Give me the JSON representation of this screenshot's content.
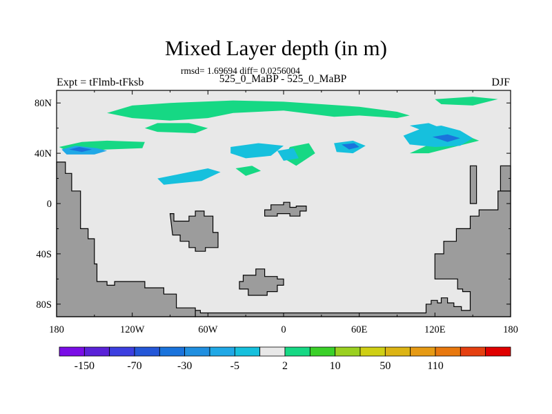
{
  "chart_data": {
    "type": "heatmap",
    "title": "Mixed Layer depth (in m)",
    "stats_line": "rmsd= 1.69694 diff= 0.0256004",
    "subtitle": "525_0_MaBP - 525_0_MaBP",
    "left_label": "Expt = tFlmb-tFksb",
    "right_label": "DJF",
    "xlim": [
      -180,
      180
    ],
    "ylim": [
      -90,
      90
    ],
    "x_ticks": [
      {
        "value": -180,
        "label": "180"
      },
      {
        "value": -120,
        "label": "120W"
      },
      {
        "value": -60,
        "label": "60W"
      },
      {
        "value": 0,
        "label": "0"
      },
      {
        "value": 60,
        "label": "60E"
      },
      {
        "value": 120,
        "label": "120E"
      },
      {
        "value": 180,
        "label": "180"
      }
    ],
    "y_ticks": [
      {
        "value": 80,
        "label": "80N"
      },
      {
        "value": 40,
        "label": "40N"
      },
      {
        "value": 0,
        "label": "0"
      },
      {
        "value": -40,
        "label": "40S"
      },
      {
        "value": -80,
        "label": "80S"
      }
    ],
    "colorbar": {
      "colors": [
        "#7a0de6",
        "#5a22d8",
        "#3c3fe0",
        "#2457d8",
        "#1a73dc",
        "#208fe0",
        "#20a8e6",
        "#16c0dd",
        "#e8e8e8",
        "#16d884",
        "#3ad028",
        "#9ad020",
        "#cfcf14",
        "#dcb414",
        "#e69a14",
        "#e8780e",
        "#e54010",
        "#e00000"
      ],
      "labels": [
        {
          "boundary": 1,
          "text": "-150"
        },
        {
          "boundary": 3,
          "text": "-70"
        },
        {
          "boundary": 5,
          "text": "-30"
        },
        {
          "boundary": 7,
          "text": "-5"
        },
        {
          "boundary": 9,
          "text": "2"
        },
        {
          "boundary": 11,
          "text": "10"
        },
        {
          "boundary": 13,
          "text": "50"
        },
        {
          "boundary": 15,
          "text": "110"
        }
      ]
    },
    "background_color": "#e8e8e8",
    "land_color": "#9c9c9c",
    "land_regions": [
      {
        "name": "west-land",
        "points": [
          [
            -180,
            33
          ],
          [
            -173,
            33
          ],
          [
            -173,
            24
          ],
          [
            -168,
            24
          ],
          [
            -168,
            10
          ],
          [
            -161,
            10
          ],
          [
            -161,
            -20
          ],
          [
            -155,
            -20
          ],
          [
            -155,
            -28
          ],
          [
            -150,
            -28
          ],
          [
            -150,
            -48
          ],
          [
            -148,
            -48
          ],
          [
            -148,
            -62
          ],
          [
            -140,
            -62
          ],
          [
            -140,
            -65
          ],
          [
            -134,
            -65
          ],
          [
            -134,
            -62
          ],
          [
            -110,
            -62
          ],
          [
            -110,
            -67
          ],
          [
            -95,
            -67
          ],
          [
            -95,
            -72
          ],
          [
            -85,
            -72
          ],
          [
            -85,
            -83
          ],
          [
            -70,
            -83
          ],
          [
            -70,
            -90
          ],
          [
            -180,
            -90
          ]
        ]
      },
      {
        "name": "south-land",
        "points": [
          [
            -70,
            -90
          ],
          [
            -70,
            -85
          ],
          [
            -66,
            -85
          ],
          [
            -66,
            -87
          ],
          [
            113,
            -87
          ],
          [
            113,
            -80
          ],
          [
            117,
            -80
          ],
          [
            117,
            -77
          ],
          [
            122,
            -77
          ],
          [
            122,
            -79
          ],
          [
            125,
            -79
          ],
          [
            125,
            -75
          ],
          [
            130,
            -75
          ],
          [
            130,
            -79
          ],
          [
            135,
            -79
          ],
          [
            135,
            -82
          ],
          [
            141,
            -82
          ],
          [
            141,
            -85
          ],
          [
            148,
            -85
          ],
          [
            148,
            -70
          ],
          [
            142,
            -70
          ],
          [
            142,
            -68
          ],
          [
            138,
            -68
          ],
          [
            138,
            -60
          ],
          [
            120,
            -60
          ],
          [
            120,
            -40
          ],
          [
            127,
            -40
          ],
          [
            127,
            -30
          ],
          [
            137,
            -30
          ],
          [
            137,
            -20
          ],
          [
            148,
            -20
          ],
          [
            148,
            -10
          ],
          [
            155,
            -10
          ],
          [
            155,
            -5
          ],
          [
            170,
            -5
          ],
          [
            170,
            10
          ],
          [
            180,
            10
          ],
          [
            180,
            -90
          ]
        ]
      },
      {
        "name": "east-peninsula",
        "points": [
          [
            180,
            30
          ],
          [
            172,
            30
          ],
          [
            172,
            10
          ],
          [
            180,
            10
          ]
        ]
      },
      {
        "name": "east-land-strip",
        "points": [
          [
            148,
            30
          ],
          [
            153,
            30
          ],
          [
            153,
            0
          ],
          [
            148,
            0
          ]
        ]
      },
      {
        "name": "central-continent",
        "points": [
          [
            -90,
            -8
          ],
          [
            -87,
            -8
          ],
          [
            -87,
            -14
          ],
          [
            -75,
            -14
          ],
          [
            -75,
            -10
          ],
          [
            -70,
            -10
          ],
          [
            -70,
            -6
          ],
          [
            -63,
            -6
          ],
          [
            -63,
            -10
          ],
          [
            -56,
            -10
          ],
          [
            -56,
            -23
          ],
          [
            -52,
            -23
          ],
          [
            -52,
            -35
          ],
          [
            -62,
            -35
          ],
          [
            -62,
            -38
          ],
          [
            -70,
            -38
          ],
          [
            -70,
            -35
          ],
          [
            -75,
            -35
          ],
          [
            -75,
            -30
          ],
          [
            -82,
            -30
          ],
          [
            -82,
            -25
          ],
          [
            -88,
            -25
          ]
        ]
      },
      {
        "name": "equatorial-island",
        "points": [
          [
            -15,
            -5
          ],
          [
            -10,
            -5
          ],
          [
            -10,
            -1
          ],
          [
            0,
            -1
          ],
          [
            0,
            1
          ],
          [
            5,
            1
          ],
          [
            5,
            -3
          ],
          [
            10,
            -3
          ],
          [
            10,
            -2
          ],
          [
            18,
            -2
          ],
          [
            18,
            -6
          ],
          [
            13,
            -6
          ],
          [
            13,
            -10
          ],
          [
            5,
            -10
          ],
          [
            5,
            -8
          ],
          [
            -5,
            -8
          ],
          [
            -5,
            -10
          ],
          [
            -10,
            -10
          ],
          [
            -15,
            -10
          ]
        ]
      },
      {
        "name": "southern-ring",
        "points": [
          [
            -35,
            -62
          ],
          [
            -32,
            -62
          ],
          [
            -32,
            -57
          ],
          [
            -22,
            -57
          ],
          [
            -22,
            -52
          ],
          [
            -15,
            -52
          ],
          [
            -15,
            -58
          ],
          [
            -5,
            -58
          ],
          [
            -5,
            -60
          ],
          [
            0,
            -60
          ],
          [
            0,
            -65
          ],
          [
            -5,
            -65
          ],
          [
            -5,
            -70
          ],
          [
            -13,
            -70
          ],
          [
            -13,
            -73
          ],
          [
            -28,
            -73
          ],
          [
            -28,
            -68
          ],
          [
            -35,
            -68
          ]
        ]
      }
    ],
    "anomaly_regions": [
      {
        "name": "arctic-green-band",
        "color": "#16d884",
        "points": [
          [
            -140,
            72
          ],
          [
            -120,
            78
          ],
          [
            -90,
            80
          ],
          [
            -40,
            82
          ],
          [
            0,
            81
          ],
          [
            30,
            79
          ],
          [
            60,
            77
          ],
          [
            90,
            73
          ],
          [
            100,
            70
          ],
          [
            90,
            68
          ],
          [
            60,
            70
          ],
          [
            40,
            69
          ],
          [
            0,
            74
          ],
          [
            -40,
            72
          ],
          [
            -60,
            68
          ],
          [
            -90,
            66
          ],
          [
            -120,
            68
          ]
        ]
      },
      {
        "name": "arctic-green-east",
        "color": "#16d884",
        "points": [
          [
            120,
            83
          ],
          [
            150,
            85
          ],
          [
            170,
            83
          ],
          [
            150,
            78
          ],
          [
            125,
            79
          ]
        ]
      },
      {
        "name": "west-green-strip",
        "color": "#16d884",
        "points": [
          [
            -178,
            45
          ],
          [
            -160,
            49
          ],
          [
            -140,
            50
          ],
          [
            -110,
            49
          ],
          [
            -112,
            44
          ],
          [
            -140,
            43
          ],
          [
            -170,
            41
          ]
        ]
      },
      {
        "name": "north-green-blob",
        "color": "#16d884",
        "points": [
          [
            -110,
            60
          ],
          [
            -100,
            57
          ],
          [
            -70,
            56
          ],
          [
            -60,
            60
          ],
          [
            -75,
            64
          ],
          [
            -100,
            64
          ]
        ]
      },
      {
        "name": "eastern-green-streak",
        "color": "#16d884",
        "points": [
          [
            100,
            40
          ],
          [
            120,
            49
          ],
          [
            140,
            56
          ],
          [
            155,
            50
          ],
          [
            135,
            45
          ],
          [
            115,
            40
          ]
        ]
      },
      {
        "name": "western-pacific-blue",
        "color": "#20a8e6",
        "points": [
          [
            -176,
            43
          ],
          [
            -165,
            46
          ],
          [
            -148,
            44
          ],
          [
            -140,
            42
          ],
          [
            -150,
            39
          ],
          [
            -172,
            39
          ]
        ]
      },
      {
        "name": "western-pacific-deep",
        "color": "#1a73dc",
        "points": [
          [
            -170,
            43
          ],
          [
            -162,
            45
          ],
          [
            -152,
            43
          ],
          [
            -160,
            41
          ]
        ]
      },
      {
        "name": "mid-pacific-cyan",
        "color": "#16c0dd",
        "points": [
          [
            -100,
            20
          ],
          [
            -80,
            24
          ],
          [
            -60,
            28
          ],
          [
            -50,
            25
          ],
          [
            -65,
            18
          ],
          [
            -95,
            15
          ]
        ]
      },
      {
        "name": "north-central-cyan",
        "color": "#16c0dd",
        "points": [
          [
            -42,
            45
          ],
          [
            -20,
            48
          ],
          [
            0,
            46
          ],
          [
            -10,
            38
          ],
          [
            -30,
            36
          ],
          [
            -42,
            40
          ]
        ]
      },
      {
        "name": "green-patch-mid",
        "color": "#16d884",
        "points": [
          [
            -38,
            28
          ],
          [
            -25,
            30
          ],
          [
            -18,
            26
          ],
          [
            -30,
            22
          ]
        ]
      },
      {
        "name": "green-patch-east",
        "color": "#16d884",
        "points": [
          [
            5,
            45
          ],
          [
            20,
            48
          ],
          [
            25,
            40
          ],
          [
            10,
            30
          ],
          [
            0,
            36
          ]
        ]
      },
      {
        "name": "atlantic-cyan",
        "color": "#16c0dd",
        "points": [
          [
            40,
            48
          ],
          [
            55,
            50
          ],
          [
            65,
            46
          ],
          [
            55,
            40
          ],
          [
            42,
            41
          ]
        ]
      },
      {
        "name": "atlantic-deep",
        "color": "#1a73dc",
        "points": [
          [
            46,
            47
          ],
          [
            56,
            48
          ],
          [
            60,
            45
          ],
          [
            52,
            43
          ]
        ]
      },
      {
        "name": "east-asian-cyan",
        "color": "#16c0dd",
        "points": [
          [
            95,
            54
          ],
          [
            110,
            60
          ],
          [
            125,
            62
          ],
          [
            140,
            58
          ],
          [
            150,
            52
          ],
          [
            140,
            46
          ],
          [
            120,
            45
          ],
          [
            100,
            47
          ]
        ]
      },
      {
        "name": "east-asian-deep",
        "color": "#1a73dc",
        "points": [
          [
            118,
            53
          ],
          [
            130,
            55
          ],
          [
            140,
            52
          ],
          [
            130,
            49
          ]
        ]
      },
      {
        "name": "siberian-cyan",
        "color": "#16c0dd",
        "points": [
          [
            100,
            62
          ],
          [
            115,
            64
          ],
          [
            125,
            60
          ],
          [
            110,
            58
          ]
        ]
      },
      {
        "name": "midlatitude-cyan-east",
        "color": "#16c0dd",
        "points": [
          [
            -5,
            42
          ],
          [
            8,
            44
          ],
          [
            12,
            36
          ],
          [
            0,
            34
          ]
        ]
      }
    ]
  }
}
